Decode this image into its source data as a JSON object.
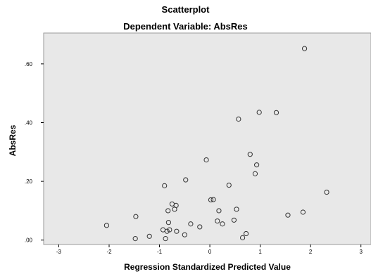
{
  "chart_data": {
    "type": "scatter",
    "title": "Scatterplot",
    "subtitle": "Dependent Variable: AbsRes",
    "xlabel": "Regression Standardized Predicted Value",
    "ylabel": "AbsRes",
    "xlim": [
      -3.3,
      3.2
    ],
    "ylim": [
      -0.015,
      0.705
    ],
    "xticks": [
      -3,
      -2,
      -1,
      0,
      1,
      2,
      3
    ],
    "xtick_labels": [
      "-3",
      "-2",
      "-1",
      "0",
      "1",
      "2",
      "3"
    ],
    "yticks": [
      0.0,
      0.2,
      0.4,
      0.6
    ],
    "ytick_labels": [
      ".00",
      ".20",
      ".40",
      ".60"
    ],
    "grid": false,
    "background": "#e8e8e8",
    "marker": "open-circle",
    "x": [
      -2.05,
      -1.48,
      -1.47,
      -1.2,
      -0.93,
      -0.9,
      -0.88,
      -0.85,
      -0.83,
      -0.82,
      -0.8,
      -0.75,
      -0.7,
      -0.67,
      -0.66,
      -0.5,
      -0.48,
      -0.38,
      -0.2,
      -0.07,
      0.02,
      0.07,
      0.15,
      0.18,
      0.25,
      0.38,
      0.48,
      0.53,
      0.57,
      0.65,
      0.72,
      0.8,
      0.9,
      0.93,
      0.98,
      1.32,
      1.55,
      1.85,
      1.88,
      2.32
    ],
    "y": [
      0.05,
      0.005,
      0.08,
      0.013,
      0.035,
      0.185,
      0.005,
      0.03,
      0.1,
      0.06,
      0.035,
      0.123,
      0.105,
      0.118,
      0.03,
      0.018,
      0.205,
      0.055,
      0.045,
      0.273,
      0.137,
      0.138,
      0.065,
      0.1,
      0.055,
      0.187,
      0.068,
      0.105,
      0.412,
      0.008,
      0.022,
      0.292,
      0.226,
      0.256,
      0.435,
      0.434,
      0.085,
      0.095,
      0.652,
      0.163
    ]
  }
}
